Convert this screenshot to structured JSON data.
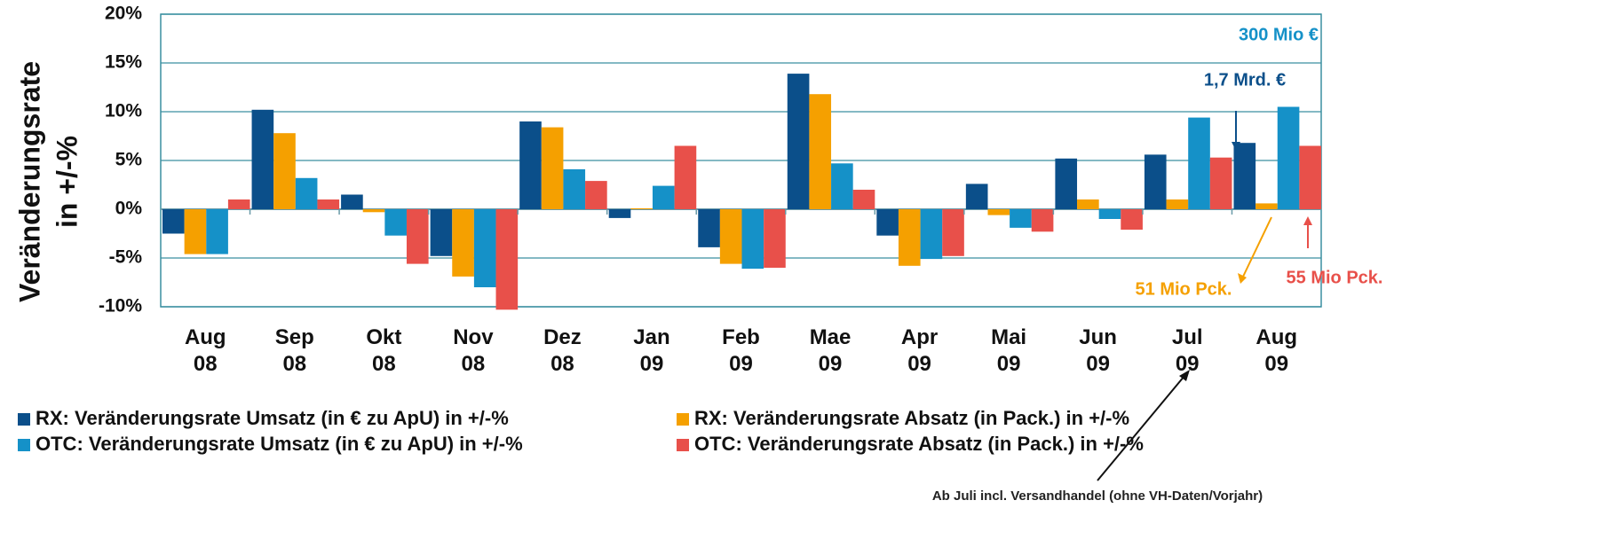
{
  "chart_data": {
    "type": "bar",
    "ylabel": [
      "Veränderungsrate",
      "in +/-%"
    ],
    "categories": [
      "Aug 08",
      "Sep 08",
      "Okt 08",
      "Nov 08",
      "Dez 08",
      "Jan 09",
      "Feb 09",
      "Mae 09",
      "Apr 09",
      "Mai 09",
      "Jun 09",
      "Jul 09",
      "Aug 09"
    ],
    "series": [
      {
        "name": "RX: Veränderungsrate Umsatz (in € zu ApU) in +/-%",
        "color": "#0b4f8a",
        "values": [
          -2.5,
          10.2,
          1.5,
          -4.8,
          9.0,
          -0.9,
          -3.9,
          13.9,
          -2.7,
          2.6,
          5.2,
          5.6,
          6.8
        ]
      },
      {
        "name": "RX: Veränderungsrate Absatz (in Pack.) in +/-%",
        "color": "#f5a000",
        "values": [
          -4.6,
          7.8,
          -0.3,
          -6.9,
          8.4,
          0.1,
          -5.6,
          11.8,
          -5.8,
          -0.6,
          1.0,
          1.0,
          0.6
        ]
      },
      {
        "name": "OTC: Veränderungsrate Umsatz (in € zu ApU) in +/-%",
        "color": "#1591c8",
        "values": [
          -4.6,
          3.2,
          -2.7,
          -8.0,
          4.1,
          2.4,
          -6.1,
          4.7,
          -5.1,
          -1.9,
          -1.0,
          9.4,
          10.5
        ]
      },
      {
        "name": "OTC: Veränderungsrate Absatz (in Pack.) in +/-%",
        "color": "#e8504a",
        "values": [
          1.0,
          1.0,
          -5.6,
          -10.3,
          2.9,
          6.5,
          -6.0,
          2.0,
          -4.8,
          -2.3,
          -2.1,
          5.3,
          6.5
        ]
      }
    ],
    "ylim": [
      -10,
      20
    ],
    "yticks": [
      {
        "value": -10,
        "label": "-10%"
      },
      {
        "value": -5,
        "label": "-5%"
      },
      {
        "value": 0,
        "label": "0%"
      },
      {
        "value": 5,
        "label": "5%"
      },
      {
        "value": 10,
        "label": "10%"
      },
      {
        "value": 15,
        "label": "15%"
      },
      {
        "value": 20,
        "label": "20%"
      }
    ],
    "grid": true,
    "annotations": [
      {
        "text": "300 Mio €",
        "color": "#1591c8"
      },
      {
        "text": "1,7 Mrd. €",
        "color": "#0b4f8a"
      },
      {
        "text": "51 Mio Pck.",
        "color": "#f5a000"
      },
      {
        "text": "55 Mio Pck.",
        "color": "#e8504a"
      },
      {
        "text": "Ab Juli incl. Versandhandel (ohne VH-Daten/Vorjahr)",
        "color": "#222222"
      }
    ]
  }
}
